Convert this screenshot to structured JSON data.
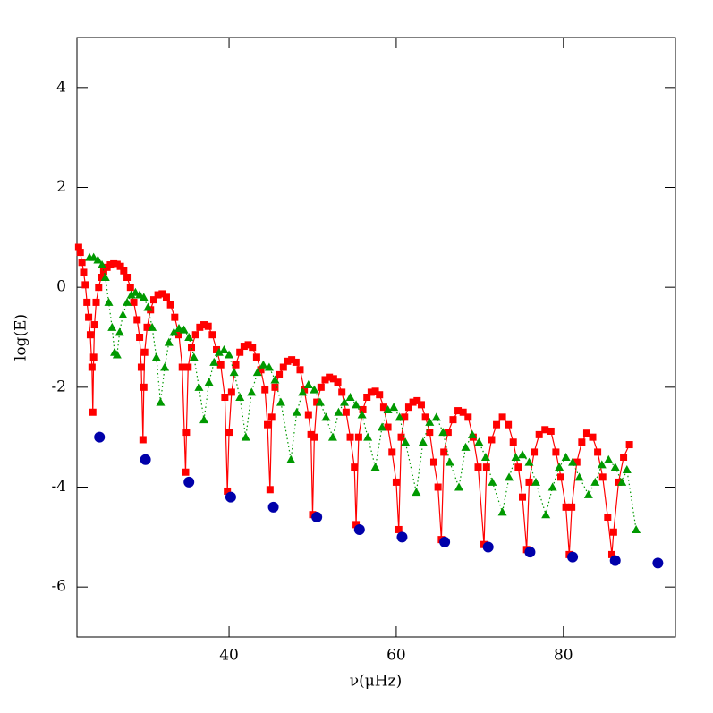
{
  "chart_data": {
    "type": "scatter",
    "xlabel": "ν(μHz)",
    "ylabel": "log(E)",
    "xlim": [
      21.8,
      93.4
    ],
    "ylim": [
      -7,
      5
    ],
    "xticks": [
      40,
      60,
      80
    ],
    "yticks": [
      -6,
      -4,
      -2,
      0,
      2,
      4
    ],
    "series": [
      {
        "color": "#ff0000",
        "marker": "square",
        "line": "solid",
        "x": [
          22.0,
          22.2,
          22.4,
          22.6,
          22.8,
          23.0,
          23.2,
          23.4,
          23.6,
          23.7,
          23.8,
          23.9,
          24.1,
          24.4,
          24.7,
          25.0,
          25.4,
          25.8,
          26.2,
          26.6,
          27.0,
          27.4,
          27.8,
          28.2,
          28.6,
          29.0,
          29.3,
          29.5,
          29.7,
          29.8,
          29.9,
          30.2,
          30.6,
          31.0,
          31.5,
          32.0,
          32.5,
          33.0,
          33.5,
          34.0,
          34.4,
          34.8,
          34.9,
          35.1,
          35.5,
          36.0,
          36.5,
          37.0,
          37.5,
          38.0,
          38.5,
          39.0,
          39.5,
          39.8,
          40.0,
          40.3,
          40.8,
          41.3,
          41.8,
          42.3,
          42.8,
          43.3,
          43.8,
          44.3,
          44.6,
          44.9,
          45.1,
          45.5,
          46.0,
          46.5,
          47.0,
          47.5,
          48.0,
          48.5,
          49.0,
          49.5,
          49.8,
          50.0,
          50.2,
          50.5,
          51.0,
          51.5,
          52.0,
          52.5,
          53.0,
          53.5,
          54.0,
          54.5,
          55.0,
          55.2,
          55.5,
          56.0,
          56.5,
          57.0,
          57.5,
          58.0,
          58.5,
          59.0,
          59.5,
          60.0,
          60.3,
          60.6,
          61.0,
          61.5,
          62.0,
          62.5,
          63.0,
          63.5,
          64.0,
          64.5,
          65.0,
          65.4,
          65.7,
          66.2,
          66.8,
          67.4,
          68.0,
          68.6,
          69.2,
          69.8,
          70.5,
          70.8,
          71.4,
          72.0,
          72.7,
          73.4,
          74.0,
          74.6,
          75.1,
          75.6,
          75.9,
          76.5,
          77.1,
          77.8,
          78.5,
          79.1,
          79.7,
          80.3,
          80.7,
          81.0,
          81.6,
          82.2,
          82.8,
          83.5,
          84.1,
          84.7,
          85.3,
          85.8,
          86.0,
          86.6,
          87.2,
          87.9
        ],
        "values": [
          0.8,
          0.7,
          0.5,
          0.3,
          0.05,
          -0.3,
          -0.6,
          -0.95,
          -1.6,
          -2.5,
          -1.4,
          -0.75,
          -0.3,
          0.0,
          0.2,
          0.32,
          0.4,
          0.45,
          0.47,
          0.46,
          0.42,
          0.33,
          0.2,
          0.0,
          -0.3,
          -0.65,
          -1.0,
          -1.6,
          -3.05,
          -2.0,
          -1.3,
          -0.8,
          -0.45,
          -0.25,
          -0.15,
          -0.13,
          -0.2,
          -0.35,
          -0.6,
          -0.95,
          -1.6,
          -3.7,
          -2.9,
          -1.6,
          -1.2,
          -0.95,
          -0.8,
          -0.75,
          -0.78,
          -0.95,
          -1.25,
          -1.55,
          -2.2,
          -4.08,
          -2.9,
          -2.1,
          -1.55,
          -1.3,
          -1.18,
          -1.15,
          -1.2,
          -1.4,
          -1.65,
          -2.05,
          -2.75,
          -4.05,
          -2.6,
          -2.0,
          -1.75,
          -1.6,
          -1.48,
          -1.45,
          -1.5,
          -1.65,
          -2.05,
          -2.55,
          -2.95,
          -4.55,
          -3.0,
          -2.3,
          -2.0,
          -1.85,
          -1.8,
          -1.83,
          -1.9,
          -2.1,
          -2.5,
          -3.0,
          -3.6,
          -4.75,
          -3.0,
          -2.45,
          -2.2,
          -2.1,
          -2.08,
          -2.15,
          -2.4,
          -2.8,
          -3.3,
          -3.9,
          -4.85,
          -3.0,
          -2.6,
          -2.4,
          -2.3,
          -2.27,
          -2.35,
          -2.6,
          -2.9,
          -3.5,
          -4.0,
          -5.05,
          -3.3,
          -2.9,
          -2.65,
          -2.47,
          -2.5,
          -2.6,
          -3.0,
          -3.6,
          -5.15,
          -3.6,
          -3.05,
          -2.75,
          -2.6,
          -2.75,
          -3.1,
          -3.6,
          -4.2,
          -5.25,
          -3.9,
          -3.3,
          -2.95,
          -2.85,
          -2.88,
          -3.3,
          -3.8,
          -4.4,
          -5.35,
          -4.4,
          -3.5,
          -3.1,
          -2.92,
          -3.0,
          -3.3,
          -3.8,
          -4.6,
          -5.35,
          -4.9,
          -3.9,
          -3.4,
          -3.15
        ]
      },
      {
        "color": "#009900",
        "marker": "triangle",
        "line": "dotted",
        "x": [
          23.3,
          23.8,
          24.3,
          24.8,
          25.2,
          25.6,
          26.0,
          26.3,
          26.6,
          26.9,
          27.3,
          27.8,
          28.3,
          28.8,
          29.3,
          29.8,
          30.3,
          30.8,
          31.3,
          31.8,
          32.3,
          32.8,
          33.4,
          34.0,
          34.6,
          35.2,
          35.8,
          36.4,
          37.0,
          37.6,
          38.2,
          38.8,
          39.4,
          40.0,
          40.6,
          41.3,
          42.0,
          42.7,
          43.4,
          44.1,
          44.8,
          45.5,
          46.2,
          47.4,
          48.1,
          48.8,
          49.5,
          50.2,
          50.9,
          51.6,
          52.4,
          53.1,
          53.8,
          54.5,
          55.2,
          55.9,
          56.6,
          57.5,
          58.3,
          59.0,
          59.7,
          60.4,
          61.1,
          62.4,
          63.2,
          64.0,
          64.8,
          65.6,
          66.4,
          67.5,
          68.3,
          69.1,
          69.9,
          70.7,
          71.5,
          72.7,
          73.5,
          74.3,
          75.1,
          75.9,
          76.7,
          77.9,
          78.7,
          79.5,
          80.3,
          81.1,
          81.9,
          83.0,
          83.8,
          84.6,
          85.4,
          86.2,
          87.0,
          87.6,
          88.7
        ],
        "values": [
          0.6,
          0.6,
          0.55,
          0.45,
          0.2,
          -0.3,
          -0.8,
          -1.3,
          -1.35,
          -0.9,
          -0.55,
          -0.3,
          -0.15,
          -0.1,
          -0.15,
          -0.2,
          -0.4,
          -0.8,
          -1.4,
          -2.3,
          -1.6,
          -1.1,
          -0.9,
          -0.82,
          -0.85,
          -1.0,
          -1.4,
          -2.0,
          -2.65,
          -1.9,
          -1.5,
          -1.3,
          -1.25,
          -1.35,
          -1.7,
          -2.2,
          -3.0,
          -2.1,
          -1.7,
          -1.55,
          -1.6,
          -1.85,
          -2.3,
          -3.45,
          -2.5,
          -2.1,
          -1.95,
          -2.05,
          -2.3,
          -2.6,
          -3.0,
          -2.5,
          -2.3,
          -2.2,
          -2.35,
          -2.55,
          -3.0,
          -3.6,
          -2.8,
          -2.45,
          -2.4,
          -2.6,
          -3.1,
          -4.1,
          -3.1,
          -2.7,
          -2.6,
          -2.9,
          -3.5,
          -4.0,
          -3.2,
          -2.95,
          -3.1,
          -3.4,
          -3.9,
          -4.5,
          -3.8,
          -3.4,
          -3.35,
          -3.5,
          -3.9,
          -4.55,
          -4.0,
          -3.6,
          -3.4,
          -3.5,
          -3.8,
          -4.15,
          -3.9,
          -3.55,
          -3.45,
          -3.6,
          -3.9,
          -3.65,
          -4.85
        ]
      },
      {
        "color": "#0000aa",
        "marker": "circle",
        "line": "none",
        "x": [
          24.5,
          30.0,
          35.2,
          40.2,
          45.3,
          50.5,
          55.6,
          60.7,
          65.8,
          71.0,
          76.0,
          81.1,
          86.2,
          91.3
        ],
        "values": [
          -3.0,
          -3.45,
          -3.9,
          -4.2,
          -4.4,
          -4.6,
          -4.85,
          -5.0,
          -5.1,
          -5.2,
          -5.3,
          -5.4,
          -5.47,
          -5.52
        ]
      }
    ]
  }
}
